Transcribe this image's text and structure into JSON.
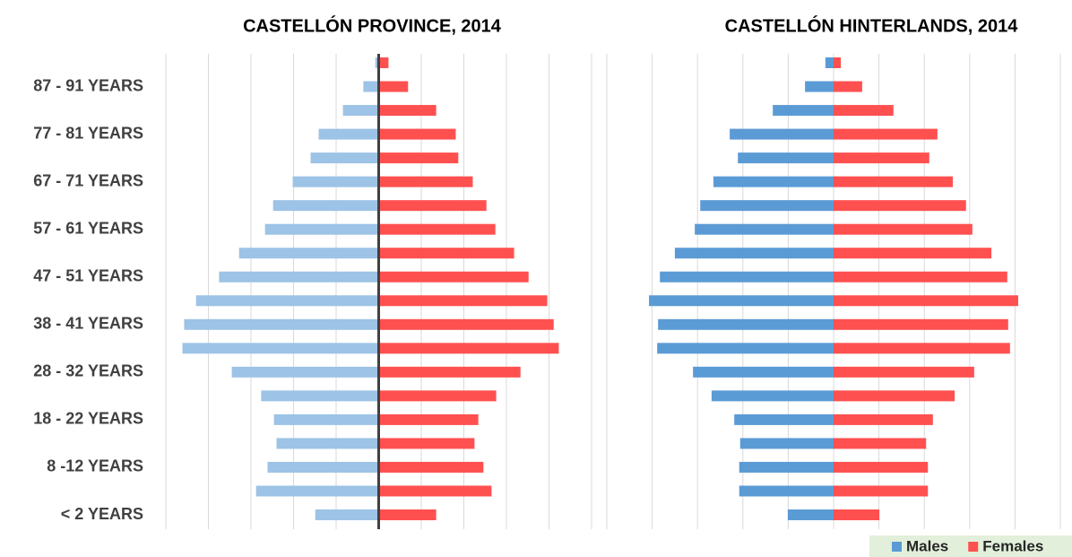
{
  "chart_data": [
    {
      "type": "pyramid",
      "title": "CASTELLÓN PROVINCE, 2014",
      "categories": [
        "< 2 YEARS",
        null,
        "8 -12 YEARS",
        null,
        "18 - 22 YEARS",
        null,
        "28 - 32 YEARS",
        null,
        "38 - 41 YEARS",
        null,
        "47 - 51 YEARS",
        null,
        "57 - 61 YEARS",
        null,
        "67 - 71 YEARS",
        null,
        "77 - 81 YEARS",
        null,
        "87 - 91 YEARS",
        null
      ],
      "xlim": [
        -5,
        5
      ],
      "xticks": [
        -5,
        -4,
        -3,
        -2,
        -1,
        0,
        1,
        2,
        3,
        4,
        5
      ],
      "grid": true,
      "center_line": true,
      "series": [
        {
          "color": "#9dc3e6",
          "side": "left",
          "values": [
            1.49,
            2.88,
            2.61,
            2.4,
            2.46,
            2.76,
            3.45,
            4.61,
            4.57,
            4.29,
            3.75,
            3.28,
            2.67,
            2.48,
            2.02,
            1.6,
            1.41,
            0.84,
            0.36,
            0.08
          ]
        },
        {
          "color": "#ff5050",
          "side": "right",
          "values": [
            1.35,
            2.65,
            2.46,
            2.25,
            2.34,
            2.76,
            3.33,
            4.23,
            4.11,
            3.96,
            3.52,
            3.18,
            2.74,
            2.53,
            2.21,
            1.87,
            1.81,
            1.35,
            0.69,
            0.23
          ]
        }
      ]
    },
    {
      "type": "pyramid",
      "title": "CASTELLÓN HINTERLANDS, 2014",
      "xlim": [
        -5,
        5
      ],
      "xticks": [
        -5,
        -4,
        -3,
        -2,
        -1,
        0,
        1,
        2,
        3,
        4,
        5
      ],
      "grid": true,
      "center_line": false,
      "series": [
        {
          "name": "Males",
          "color": "#5b9bd5",
          "side": "left",
          "values": [
            1.01,
            2.08,
            2.08,
            2.06,
            2.19,
            2.69,
            3.1,
            3.89,
            3.87,
            4.07,
            3.83,
            3.5,
            3.06,
            2.94,
            2.65,
            2.11,
            2.29,
            1.34,
            0.63,
            0.18
          ]
        },
        {
          "name": "Females",
          "color": "#ff5050",
          "side": "right",
          "values": [
            1.01,
            2.08,
            2.08,
            2.04,
            2.19,
            2.67,
            3.1,
            3.89,
            3.85,
            4.07,
            3.83,
            3.48,
            3.06,
            2.92,
            2.63,
            2.11,
            2.29,
            1.32,
            0.63,
            0.16
          ]
        }
      ]
    }
  ]
}
